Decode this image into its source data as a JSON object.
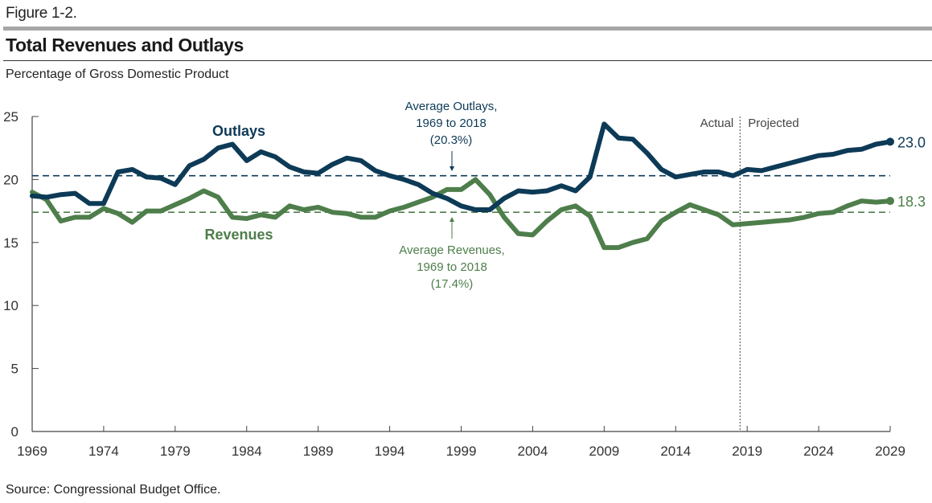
{
  "figure_label": "Figure 1-2.",
  "title": "Total Revenues and Outlays",
  "subtitle": "Percentage of Gross Domestic Product",
  "source": "Source: Congressional Budget Office.",
  "colors": {
    "outlays": "#0d3a56",
    "revenues": "#4e7e4b",
    "axis": "#444444"
  },
  "chart_data": {
    "type": "line",
    "title": "Total Revenues and Outlays",
    "ylabel": "Percentage of Gross Domestic Product",
    "xlabel": "",
    "xlim": [
      1969,
      2029
    ],
    "ylim": [
      0,
      25
    ],
    "x_ticks": [
      "1969",
      "1974",
      "1979",
      "1984",
      "1989",
      "1994",
      "1999",
      "2004",
      "2009",
      "2014",
      "2019",
      "2024",
      "2029"
    ],
    "y_ticks": [
      "0",
      "5",
      "10",
      "15",
      "20",
      "25"
    ],
    "grid": false,
    "x": [
      1969,
      1970,
      1971,
      1972,
      1973,
      1974,
      1975,
      1976,
      1977,
      1978,
      1979,
      1980,
      1981,
      1982,
      1983,
      1984,
      1985,
      1986,
      1987,
      1988,
      1989,
      1990,
      1991,
      1992,
      1993,
      1994,
      1995,
      1996,
      1997,
      1998,
      1999,
      2000,
      2001,
      2002,
      2003,
      2004,
      2005,
      2006,
      2007,
      2008,
      2009,
      2010,
      2011,
      2012,
      2013,
      2014,
      2015,
      2016,
      2017,
      2018,
      2019,
      2020,
      2021,
      2022,
      2023,
      2024,
      2025,
      2026,
      2027,
      2028,
      2029
    ],
    "series": [
      {
        "name": "Outlays",
        "label": "Outlays",
        "end_label": "23.0",
        "values": [
          18.7,
          18.6,
          18.8,
          18.9,
          18.1,
          18.1,
          20.6,
          20.8,
          20.2,
          20.1,
          19.6,
          21.1,
          21.6,
          22.5,
          22.8,
          21.5,
          22.2,
          21.8,
          21.0,
          20.6,
          20.5,
          21.2,
          21.7,
          21.5,
          20.7,
          20.3,
          20.0,
          19.6,
          18.9,
          18.5,
          17.9,
          17.6,
          17.6,
          18.5,
          19.1,
          19.0,
          19.1,
          19.5,
          19.1,
          20.2,
          24.4,
          23.3,
          23.2,
          22.1,
          20.8,
          20.2,
          20.4,
          20.6,
          20.6,
          20.3,
          20.8,
          20.7,
          21.0,
          21.3,
          21.6,
          21.9,
          22.0,
          22.3,
          22.4,
          22.8,
          23.0
        ]
      },
      {
        "name": "Revenues",
        "label": "Revenues",
        "end_label": "18.3",
        "values": [
          19.0,
          18.4,
          16.7,
          17.0,
          17.0,
          17.7,
          17.3,
          16.6,
          17.5,
          17.5,
          18.0,
          18.5,
          19.1,
          18.6,
          17.0,
          16.9,
          17.2,
          17.0,
          17.9,
          17.6,
          17.8,
          17.4,
          17.3,
          17.0,
          17.0,
          17.5,
          17.8,
          18.2,
          18.6,
          19.2,
          19.2,
          20.0,
          18.8,
          17.0,
          15.7,
          15.6,
          16.7,
          17.6,
          17.9,
          17.1,
          14.6,
          14.6,
          15.0,
          15.3,
          16.7,
          17.4,
          18.0,
          17.6,
          17.2,
          16.4,
          16.5,
          16.6,
          16.7,
          16.8,
          17.0,
          17.3,
          17.4,
          17.9,
          18.3,
          18.2,
          18.3
        ]
      }
    ],
    "reference_lines": [
      {
        "name": "Average Outlays",
        "value": 20.3,
        "label_lines": [
          "Average Outlays,",
          "1969 to 2018",
          "(20.3%)"
        ]
      },
      {
        "name": "Average Revenues",
        "value": 17.4,
        "label_lines": [
          "Average Revenues,",
          "1969 to 2018",
          "(17.4%)"
        ]
      }
    ],
    "divider": {
      "year": 2018.5,
      "left_label": "Actual",
      "right_label": "Projected"
    },
    "legend": "inline labels"
  }
}
